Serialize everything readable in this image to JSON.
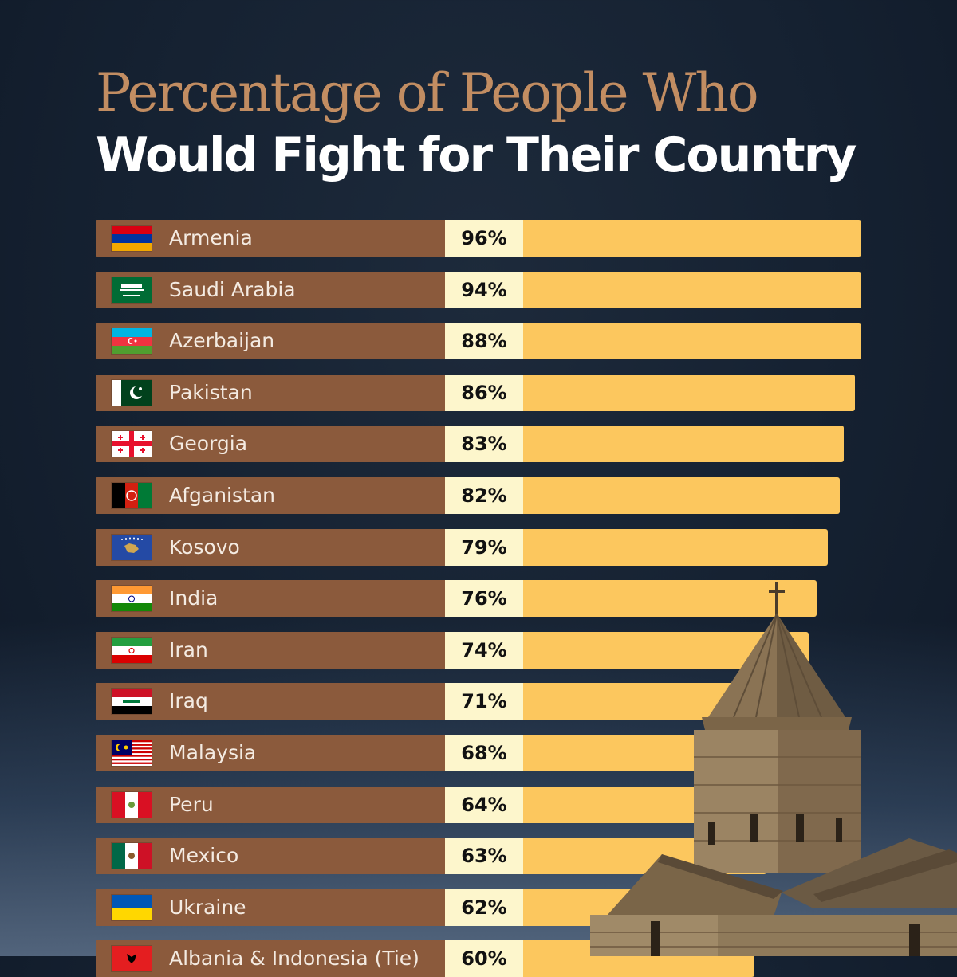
{
  "title_line1": "Percentage of People Who",
  "title_line2": "Would Fight for Their Country",
  "colors": {
    "country_bar": "#8b5a3c",
    "percent_box": "#fdf6cc",
    "value_bar": "#fcc75e",
    "title_accent": "#c28d62"
  },
  "chart_data": {
    "type": "bar",
    "orientation": "horizontal",
    "title": "Percentage of People Who Would Fight for Their Country",
    "xlim": [
      0,
      100
    ],
    "categories": [
      "Armenia",
      "Saudi Arabia",
      "Azerbaijan",
      "Pakistan",
      "Georgia",
      "Afganistan",
      "Kosovo",
      "India",
      "Iran",
      "Iraq",
      "Malaysia",
      "Peru",
      "Mexico",
      "Ukraine",
      "Albania & Indonesia (Tie)"
    ],
    "values": [
      96,
      94,
      88,
      86,
      83,
      82,
      79,
      76,
      74,
      71,
      68,
      64,
      63,
      62,
      60
    ],
    "labels": [
      "96%",
      "94%",
      "88%",
      "86%",
      "83%",
      "82%",
      "79%",
      "76%",
      "74%",
      "71%",
      "68%",
      "64%",
      "63%",
      "62%",
      "60%"
    ],
    "flags": [
      "armenia-flag",
      "saudi-arabia-flag",
      "azerbaijan-flag",
      "pakistan-flag",
      "georgia-flag",
      "afghanistan-flag",
      "kosovo-flag",
      "india-flag",
      "iran-flag",
      "iraq-flag",
      "malaysia-flag",
      "peru-flag",
      "mexico-flag",
      "ukraine-flag",
      "albania-flag"
    ]
  }
}
